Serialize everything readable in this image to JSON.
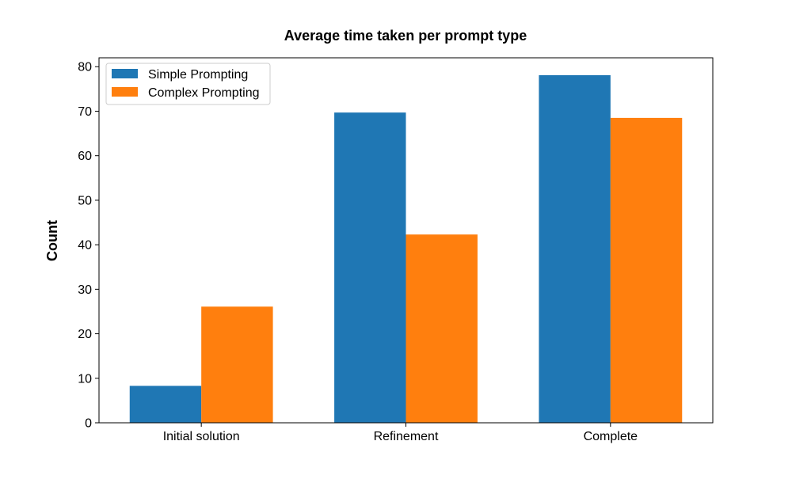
{
  "chart_data": {
    "type": "bar",
    "title": "Average time taken per prompt type",
    "xlabel": "",
    "ylabel": "Count",
    "categories": [
      "Initial solution",
      "Refinement",
      "Complete"
    ],
    "series": [
      {
        "name": "Simple Prompting",
        "color": "#1f77b4",
        "values": [
          8.3,
          69.7,
          78.1
        ]
      },
      {
        "name": "Complex Prompting",
        "color": "#ff7f0e",
        "values": [
          26.1,
          42.3,
          68.5
        ]
      }
    ],
    "ylim": [
      0,
      82
    ],
    "yticks": [
      0,
      10,
      20,
      30,
      40,
      50,
      60,
      70,
      80
    ],
    "grid": false,
    "legend": "top-left"
  }
}
